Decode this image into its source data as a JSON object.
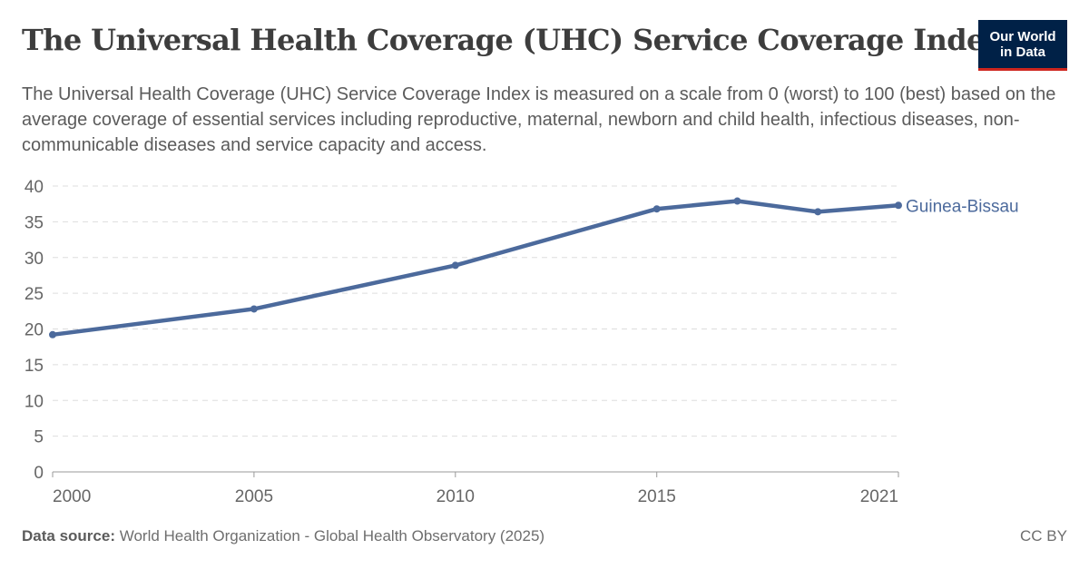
{
  "header": {
    "title": "The Universal Health Coverage (UHC) Service Coverage Index",
    "subtitle": "The Universal Health Coverage (UHC) Service Coverage Index is measured on a scale from 0 (worst) to 100 (best) based on the average coverage of essential services including reproductive, maternal, newborn and child health, infectious diseases, non-communicable diseases and service capacity and access.",
    "logo_line1": "Our World",
    "logo_line2": "in Data"
  },
  "footer": {
    "source_label": "Data source:",
    "source_text": "World Health Organization - Global Health Observatory (2025)",
    "license": "CC BY"
  },
  "colors": {
    "series": "#4c6a9c",
    "logo_bg": "#002147",
    "logo_accent": "#ce261e",
    "grid": "#dddddd"
  },
  "chart_data": {
    "type": "line",
    "title": "The Universal Health Coverage (UHC) Service Coverage Index",
    "xlabel": "",
    "ylabel": "",
    "xlim": [
      2000,
      2021
    ],
    "ylim": [
      0,
      40
    ],
    "x_ticks": [
      "2000",
      "2005",
      "2010",
      "2015",
      "2021"
    ],
    "y_ticks": [
      "0",
      "5",
      "10",
      "15",
      "20",
      "25",
      "30",
      "35",
      "40"
    ],
    "grid": true,
    "legend": "inline-right",
    "series": [
      {
        "name": "Guinea-Bissau",
        "x": [
          2000,
          2005,
          2010,
          2015,
          2017,
          2019,
          2021
        ],
        "y": [
          19.2,
          22.8,
          28.9,
          36.8,
          37.9,
          36.4,
          37.3
        ]
      }
    ]
  }
}
